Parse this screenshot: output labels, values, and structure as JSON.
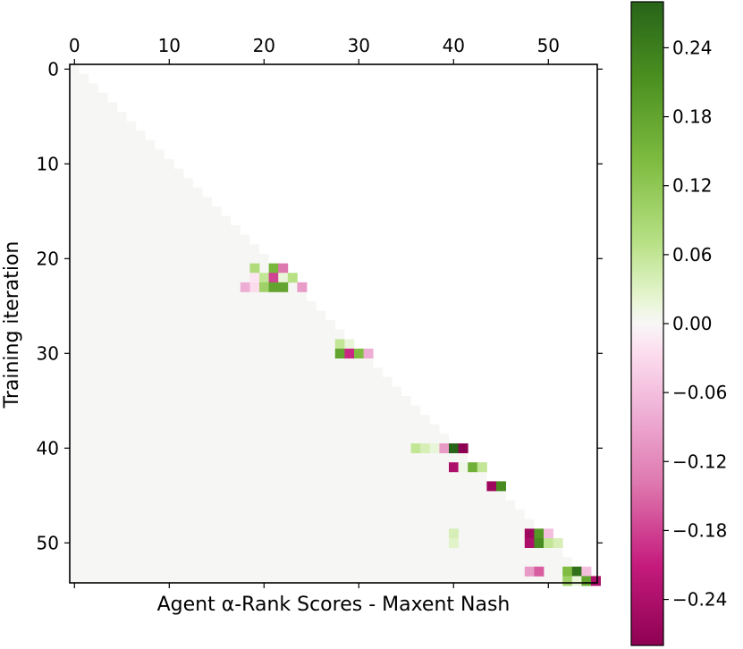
{
  "chart_data": [
    {
      "type": "heatmap",
      "title": "",
      "xlabel": "Agent α-Rank Scores - Maxent Nash",
      "ylabel": "Training iteration",
      "x_ticks": [
        0,
        10,
        20,
        30,
        40,
        50
      ],
      "y_ticks": [
        0,
        10,
        20,
        30,
        40,
        50
      ],
      "x_range": [
        0,
        55
      ],
      "y_range": [
        0,
        55
      ],
      "xaxis_position": "top",
      "mask": "lower-triangular",
      "colormap": "PiYG",
      "cells": [
        {
          "row": 21,
          "col": 19,
          "value": 0.08
        },
        {
          "row": 21,
          "col": 21,
          "value": 0.15
        },
        {
          "row": 21,
          "col": 22,
          "value": -0.14
        },
        {
          "row": 22,
          "col": 19,
          "value": -0.02
        },
        {
          "row": 22,
          "col": 20,
          "value": 0.06
        },
        {
          "row": 22,
          "col": 21,
          "value": -0.18
        },
        {
          "row": 22,
          "col": 22,
          "value": 0.02
        },
        {
          "row": 22,
          "col": 23,
          "value": 0.07
        },
        {
          "row": 23,
          "col": 18,
          "value": -0.08
        },
        {
          "row": 23,
          "col": 19,
          "value": -0.03
        },
        {
          "row": 23,
          "col": 20,
          "value": 0.1
        },
        {
          "row": 23,
          "col": 21,
          "value": 0.18
        },
        {
          "row": 23,
          "col": 22,
          "value": 0.18
        },
        {
          "row": 23,
          "col": 24,
          "value": -0.1
        },
        {
          "row": 29,
          "col": 28,
          "value": 0.06
        },
        {
          "row": 29,
          "col": 29,
          "value": 0.02
        },
        {
          "row": 30,
          "col": 28,
          "value": 0.18
        },
        {
          "row": 30,
          "col": 29,
          "value": -0.2
        },
        {
          "row": 30,
          "col": 30,
          "value": 0.14
        },
        {
          "row": 30,
          "col": 31,
          "value": -0.08
        },
        {
          "row": 40,
          "col": 36,
          "value": 0.06
        },
        {
          "row": 40,
          "col": 37,
          "value": 0.04
        },
        {
          "row": 40,
          "col": 38,
          "value": 0.02
        },
        {
          "row": 40,
          "col": 39,
          "value": -0.1
        },
        {
          "row": 40,
          "col": 40,
          "value": 0.28
        },
        {
          "row": 40,
          "col": 41,
          "value": -0.28
        },
        {
          "row": 42,
          "col": 40,
          "value": -0.24
        },
        {
          "row": 42,
          "col": 41,
          "value": 0.01
        },
        {
          "row": 42,
          "col": 42,
          "value": 0.16
        },
        {
          "row": 42,
          "col": 43,
          "value": 0.06
        },
        {
          "row": 44,
          "col": 44,
          "value": -0.26
        },
        {
          "row": 44,
          "col": 45,
          "value": 0.22
        },
        {
          "row": 49,
          "col": 40,
          "value": 0.04
        },
        {
          "row": 49,
          "col": 48,
          "value": -0.26
        },
        {
          "row": 49,
          "col": 49,
          "value": 0.2
        },
        {
          "row": 49,
          "col": 50,
          "value": -0.06
        },
        {
          "row": 50,
          "col": 40,
          "value": 0.03
        },
        {
          "row": 50,
          "col": 48,
          "value": -0.24
        },
        {
          "row": 50,
          "col": 49,
          "value": 0.22
        },
        {
          "row": 50,
          "col": 50,
          "value": 0.06
        },
        {
          "row": 50,
          "col": 51,
          "value": 0.04
        },
        {
          "row": 53,
          "col": 48,
          "value": -0.1
        },
        {
          "row": 53,
          "col": 49,
          "value": -0.16
        },
        {
          "row": 53,
          "col": 52,
          "value": 0.14
        },
        {
          "row": 53,
          "col": 53,
          "value": 0.26
        },
        {
          "row": 53,
          "col": 54,
          "value": -0.06
        },
        {
          "row": 54,
          "col": 52,
          "value": 0.1
        },
        {
          "row": 54,
          "col": 53,
          "value": 0.02
        },
        {
          "row": 54,
          "col": 54,
          "value": 0.18
        },
        {
          "row": 54,
          "col": 55,
          "value": -0.24
        }
      ]
    },
    {
      "type": "colorbar",
      "range": [
        -0.28,
        0.28
      ],
      "ticks": [
        0.24,
        0.18,
        0.12,
        0.06,
        0.0,
        -0.06,
        -0.12,
        -0.18,
        -0.24
      ],
      "tick_labels": [
        "0.24",
        "0.18",
        "0.12",
        "0.06",
        "0.00",
        "−0.06",
        "−0.12",
        "−0.18",
        "−0.24"
      ]
    }
  ]
}
